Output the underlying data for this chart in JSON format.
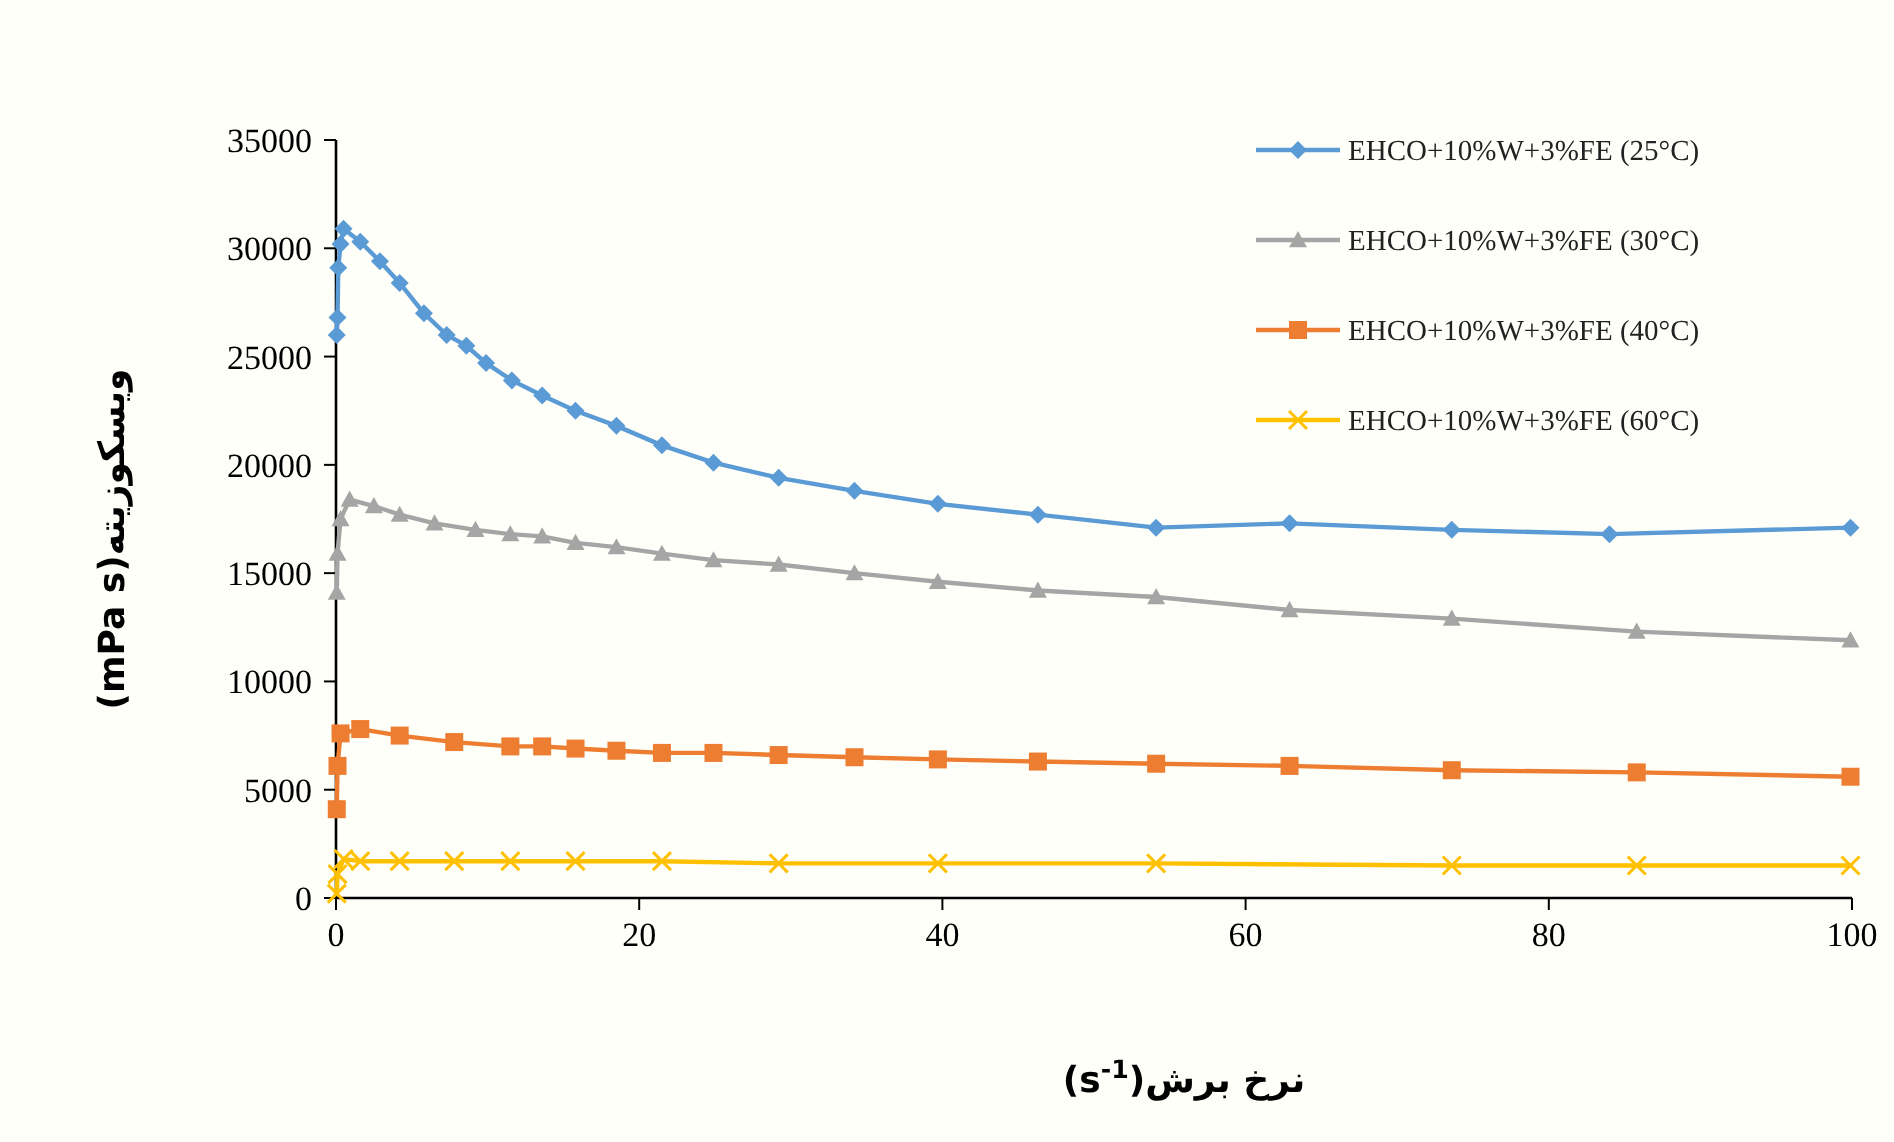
{
  "chart_data": {
    "type": "line",
    "xlabel": "نرخ برش(s$^{-1}$)",
    "ylabel": "ویسکوزیته(mPa s)",
    "xlim": [
      0,
      100
    ],
    "xticks": [
      0,
      20,
      40,
      60,
      80,
      100
    ],
    "ylim": [
      0,
      35000
    ],
    "yticks": [
      0,
      5000,
      10000,
      15000,
      20000,
      25000,
      30000,
      35000
    ],
    "legend": "top right",
    "grid": false,
    "series": [
      {
        "name": "EHCO+10%W+3%FE (25°C)",
        "color": "#5b9bd5",
        "marker": "diamond",
        "x": [
          0.05,
          0.1,
          0.15,
          0.3,
          0.5,
          1.6,
          2.9,
          4.2,
          5.8,
          7.3,
          8.6,
          9.9,
          11.6,
          13.6,
          15.8,
          18.5,
          21.5,
          24.9,
          29.2,
          34.2,
          39.7,
          46.3,
          54.1,
          62.9,
          73.6,
          84.0,
          99.9
        ],
        "values": [
          26000,
          26800,
          29100,
          30200,
          30900,
          30300,
          29400,
          28400,
          27000,
          26000,
          25500,
          24700,
          23900,
          23200,
          22500,
          21800,
          20900,
          20100,
          19400,
          18800,
          18200,
          17700,
          17100,
          17300,
          17000,
          16800,
          17100
        ]
      },
      {
        "name": "EHCO+10%W+3%FE (30°C)",
        "color": "#a5a5a5",
        "marker": "triangle",
        "x": [
          0.05,
          0.1,
          0.3,
          0.9,
          2.5,
          4.2,
          6.5,
          9.2,
          11.5,
          13.6,
          15.8,
          18.5,
          21.5,
          24.9,
          29.2,
          34.2,
          39.7,
          46.3,
          54.1,
          62.9,
          73.6,
          85.8,
          99.9
        ],
        "values": [
          14100,
          15900,
          17500,
          18400,
          18100,
          17700,
          17300,
          17000,
          16800,
          16700,
          16400,
          16200,
          15900,
          15600,
          15400,
          15000,
          14600,
          14200,
          13900,
          13300,
          12900,
          12300,
          11900
        ]
      },
      {
        "name": "EHCO+10%W+3%FE (40°C)",
        "color": "#ed7d31",
        "marker": "square",
        "x": [
          0.05,
          0.1,
          0.3,
          1.6,
          4.2,
          7.8,
          11.5,
          13.6,
          15.8,
          18.5,
          21.5,
          24.9,
          29.2,
          34.2,
          39.7,
          46.3,
          54.1,
          62.9,
          73.6,
          85.8,
          99.9
        ],
        "values": [
          4100,
          6100,
          7600,
          7800,
          7500,
          7200,
          7000,
          7000,
          6900,
          6800,
          6700,
          6700,
          6600,
          6500,
          6400,
          6300,
          6200,
          6100,
          5900,
          5800,
          5600
        ]
      },
      {
        "name": "EHCO+10%W+3%FE (60°C)",
        "color": "#ffc000",
        "marker": "cross",
        "x": [
          0.05,
          0.1,
          0.5,
          1.6,
          4.2,
          7.8,
          11.5,
          15.8,
          21.5,
          29.2,
          39.7,
          54.1,
          73.6,
          85.8,
          99.9
        ],
        "values": [
          200,
          1100,
          1800,
          1700,
          1700,
          1700,
          1700,
          1700,
          1700,
          1600,
          1600,
          1600,
          1500,
          1500,
          1500
        ]
      }
    ]
  }
}
